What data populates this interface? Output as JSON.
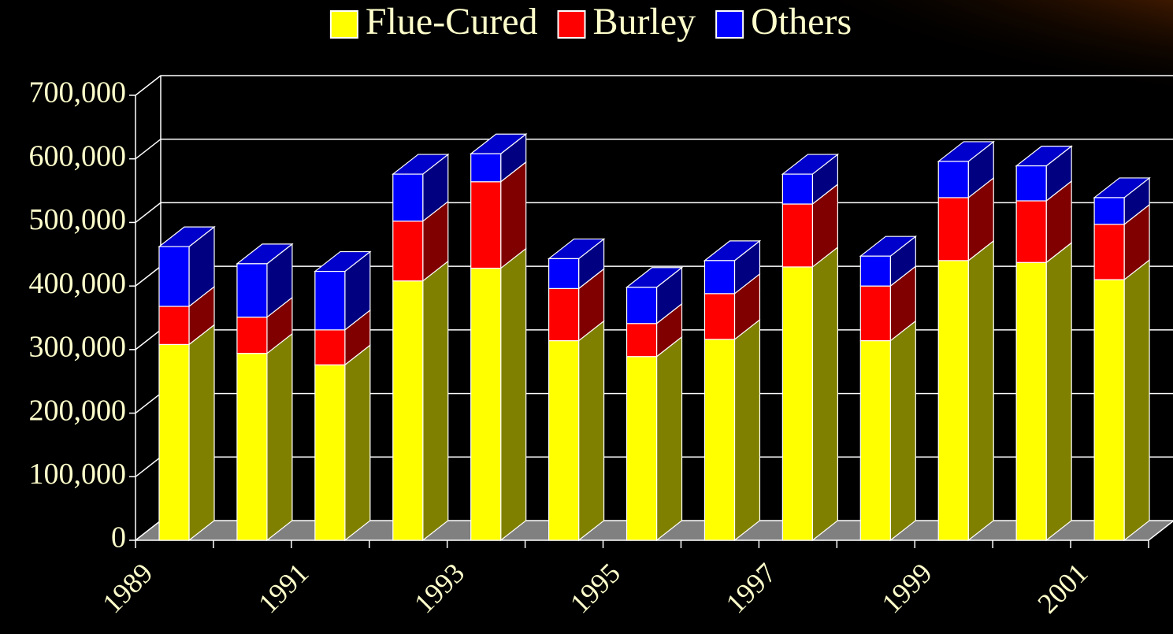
{
  "chart_data": {
    "type": "bar3d_stacked",
    "categories": [
      "1989",
      null,
      "1991",
      null,
      "1993",
      null,
      "1995",
      null,
      "1997",
      null,
      "1999",
      null,
      "2001"
    ],
    "series": [
      {
        "name": "Flue-Cured",
        "color": "#ffff00",
        "values": [
          308000,
          294000,
          276000,
          408000,
          428000,
          314000,
          289000,
          316000,
          430000,
          314000,
          440000,
          437000,
          410000
        ]
      },
      {
        "name": "Burley",
        "color": "#ff0000",
        "values": [
          60000,
          57000,
          55000,
          94000,
          136000,
          82000,
          52000,
          72000,
          99000,
          86000,
          99000,
          97000,
          87000
        ]
      },
      {
        "name": "Others",
        "color": "#0000ff",
        "values": [
          94000,
          84000,
          92000,
          74000,
          44000,
          47000,
          57000,
          52000,
          47000,
          47000,
          57000,
          55000,
          42000
        ]
      }
    ],
    "ylim": [
      0,
      700000
    ],
    "yticks": [
      0,
      {
        "value": 100000,
        "label": "100,000"
      },
      {
        "value": 200000,
        "label": "200,000"
      },
      {
        "value": 300000,
        "label": "300,000"
      },
      {
        "value": 400000,
        "label": "400,000"
      },
      {
        "value": 500000,
        "label": "500,000"
      },
      {
        "value": 600000,
        "label": "600,000"
      },
      {
        "value": 700000,
        "label": "700,000"
      }
    ],
    "grid": true,
    "legend": "top"
  }
}
